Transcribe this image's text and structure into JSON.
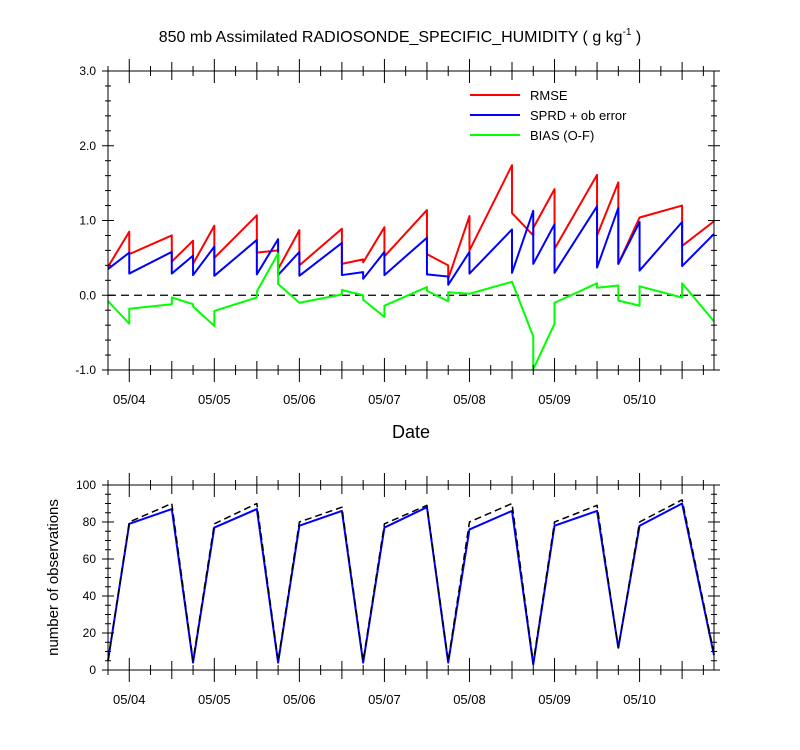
{
  "title": {
    "main": "850 mb Assimilated RADIOSONDE_SPECIFIC_HUMIDITY ( g kg",
    "sup": "-1",
    "close": " )"
  },
  "chart_data": [
    {
      "type": "line",
      "x_unit": "time (dates at 00 UTC)",
      "xlim": [
        "05/03 18:00",
        "05/10 21:00"
      ],
      "xticks": [
        "05/04",
        "05/05",
        "05/06",
        "05/07",
        "05/08",
        "05/09",
        "05/10"
      ],
      "xlabel": "Date",
      "ylim": [
        -1.0,
        3.0
      ],
      "yticks": [
        "-1.0",
        "0.0",
        "1.0",
        "2.0",
        "3.0"
      ],
      "zero_line": {
        "y": 0,
        "style": "dashed",
        "color": "#000000"
      },
      "legend_position": "top-right",
      "series": [
        {
          "name": "RMSE",
          "color": "#ff0000",
          "points": [
            [
              "05/03 18:00",
              0.38
            ],
            [
              "05/04 00:00",
              0.85
            ],
            [
              "05/04 00:00",
              0.55
            ],
            [
              "05/04 12:00",
              0.8
            ],
            [
              "05/04 12:00",
              0.45
            ],
            [
              "05/04 18:00",
              0.73
            ],
            [
              "05/04 18:00",
              0.42
            ],
            [
              "05/05 00:00",
              0.93
            ],
            [
              "05/05 00:00",
              0.5
            ],
            [
              "05/05 12:00",
              1.07
            ],
            [
              "05/05 12:00",
              0.57
            ],
            [
              "05/05 18:00",
              0.6
            ],
            [
              "05/05 18:00",
              0.35
            ],
            [
              "05/06 00:00",
              0.87
            ],
            [
              "05/06 00:00",
              0.4
            ],
            [
              "05/06 12:00",
              0.89
            ],
            [
              "05/06 12:00",
              0.42
            ],
            [
              "05/06 18:00",
              0.48
            ],
            [
              "05/06 18:00",
              0.44
            ],
            [
              "05/07 00:00",
              0.91
            ],
            [
              "05/07 00:00",
              0.52
            ],
            [
              "05/07 12:00",
              1.14
            ],
            [
              "05/07 12:00",
              0.55
            ],
            [
              "05/07 18:00",
              0.4
            ],
            [
              "05/07 18:00",
              0.22
            ],
            [
              "05/08 00:00",
              1.06
            ],
            [
              "05/08 00:00",
              0.6
            ],
            [
              "05/08 12:00",
              1.74
            ],
            [
              "05/08 12:00",
              1.1
            ],
            [
              "05/08 18:00",
              0.8
            ],
            [
              "05/08 18:00",
              0.9
            ],
            [
              "05/09 00:00",
              1.42
            ],
            [
              "05/09 00:00",
              0.62
            ],
            [
              "05/09 12:00",
              1.61
            ],
            [
              "05/09 12:00",
              0.8
            ],
            [
              "05/09 18:00",
              1.51
            ],
            [
              "05/09 18:00",
              0.42
            ],
            [
              "05/10 00:00",
              1.04
            ],
            [
              "05/10 12:00",
              1.2
            ],
            [
              "05/10 12:00",
              0.66
            ],
            [
              "05/10 21:00",
              0.99
            ]
          ]
        },
        {
          "name": "SPRD + ob error",
          "color": "#0000ff",
          "points": [
            [
              "05/03 18:00",
              0.35
            ],
            [
              "05/04 00:00",
              0.57
            ],
            [
              "05/04 00:00",
              0.29
            ],
            [
              "05/04 12:00",
              0.58
            ],
            [
              "05/04 12:00",
              0.29
            ],
            [
              "05/04 18:00",
              0.53
            ],
            [
              "05/04 18:00",
              0.27
            ],
            [
              "05/05 00:00",
              0.65
            ],
            [
              "05/05 00:00",
              0.26
            ],
            [
              "05/05 12:00",
              0.74
            ],
            [
              "05/05 12:00",
              0.28
            ],
            [
              "05/05 18:00",
              0.75
            ],
            [
              "05/05 18:00",
              0.27
            ],
            [
              "05/06 00:00",
              0.58
            ],
            [
              "05/06 00:00",
              0.26
            ],
            [
              "05/06 12:00",
              0.7
            ],
            [
              "05/06 12:00",
              0.27
            ],
            [
              "05/06 18:00",
              0.31
            ],
            [
              "05/06 18:00",
              0.22
            ],
            [
              "05/07 00:00",
              0.58
            ],
            [
              "05/07 00:00",
              0.27
            ],
            [
              "05/07 12:00",
              0.77
            ],
            [
              "05/07 12:00",
              0.28
            ],
            [
              "05/07 18:00",
              0.25
            ],
            [
              "05/07 18:00",
              0.14
            ],
            [
              "05/08 00:00",
              0.58
            ],
            [
              "05/08 00:00",
              0.29
            ],
            [
              "05/08 12:00",
              0.88
            ],
            [
              "05/08 12:00",
              0.3
            ],
            [
              "05/08 18:00",
              1.13
            ],
            [
              "05/08 18:00",
              0.42
            ],
            [
              "05/09 00:00",
              0.95
            ],
            [
              "05/09 00:00",
              0.3
            ],
            [
              "05/09 12:00",
              1.19
            ],
            [
              "05/09 12:00",
              0.37
            ],
            [
              "05/09 18:00",
              1.17
            ],
            [
              "05/09 18:00",
              0.42
            ],
            [
              "05/10 00:00",
              0.98
            ],
            [
              "05/10 00:00",
              0.33
            ],
            [
              "05/10 12:00",
              0.98
            ],
            [
              "05/10 12:00",
              0.39
            ],
            [
              "05/10 21:00",
              0.82
            ]
          ]
        },
        {
          "name": "BIAS (O-F)",
          "color": "#00ff00",
          "points": [
            [
              "05/03 18:00",
              -0.08
            ],
            [
              "05/04 00:00",
              -0.38
            ],
            [
              "05/04 00:00",
              -0.18
            ],
            [
              "05/04 12:00",
              -0.12
            ],
            [
              "05/04 12:00",
              -0.03
            ],
            [
              "05/04 18:00",
              -0.12
            ],
            [
              "05/04 18:00",
              -0.15
            ],
            [
              "05/05 00:00",
              -0.41
            ],
            [
              "05/05 00:00",
              -0.21
            ],
            [
              "05/05 12:00",
              -0.03
            ],
            [
              "05/05 12:00",
              0.05
            ],
            [
              "05/05 18:00",
              0.56
            ],
            [
              "05/05 18:00",
              0.15
            ],
            [
              "05/06 00:00",
              -0.1
            ],
            [
              "05/06 12:00",
              0.01
            ],
            [
              "05/06 12:00",
              0.07
            ],
            [
              "05/06 18:00",
              0.0
            ],
            [
              "05/06 18:00",
              -0.06
            ],
            [
              "05/07 00:00",
              -0.29
            ],
            [
              "05/07 00:00",
              -0.14
            ],
            [
              "05/07 12:00",
              0.11
            ],
            [
              "05/07 12:00",
              0.06
            ],
            [
              "05/07 18:00",
              -0.08
            ],
            [
              "05/07 18:00",
              0.04
            ],
            [
              "05/08 00:00",
              0.02
            ],
            [
              "05/08 12:00",
              0.18
            ],
            [
              "05/08 18:00",
              -0.55
            ],
            [
              "05/08 18:00",
              -0.99
            ],
            [
              "05/09 00:00",
              -0.38
            ],
            [
              "05/09 00:00",
              -0.1
            ],
            [
              "05/09 12:00",
              0.16
            ],
            [
              "05/09 12:00",
              0.1
            ],
            [
              "05/09 18:00",
              0.13
            ],
            [
              "05/09 18:00",
              -0.07
            ],
            [
              "05/10 00:00",
              -0.14
            ],
            [
              "05/10 00:00",
              0.12
            ],
            [
              "05/10 12:00",
              -0.03
            ],
            [
              "05/10 12:00",
              0.16
            ],
            [
              "05/10 21:00",
              -0.35
            ]
          ]
        }
      ]
    },
    {
      "type": "line",
      "x_unit": "time (dates at 00 UTC)",
      "xlim": [
        "05/03 18:00",
        "05/10 21:00"
      ],
      "xticks": [
        "05/04",
        "05/05",
        "05/06",
        "05/07",
        "05/08",
        "05/09",
        "05/10"
      ],
      "ylabel": "number of observations",
      "ylim": [
        0,
        100
      ],
      "yticks": [
        "0",
        "20",
        "40",
        "60",
        "80",
        "100"
      ],
      "series": [
        {
          "role": "assimilated",
          "color": "#0000ff",
          "style": "solid",
          "points": [
            [
              "05/03 18:00",
              5
            ],
            [
              "05/04 00:00",
              79
            ],
            [
              "05/04 12:00",
              87
            ],
            [
              "05/04 18:00",
              4
            ],
            [
              "05/05 00:00",
              77
            ],
            [
              "05/05 12:00",
              87
            ],
            [
              "05/05 18:00",
              4
            ],
            [
              "05/06 00:00",
              78
            ],
            [
              "05/06 12:00",
              86
            ],
            [
              "05/06 18:00",
              4
            ],
            [
              "05/07 00:00",
              77
            ],
            [
              "05/07 12:00",
              88
            ],
            [
              "05/07 18:00",
              4
            ],
            [
              "05/08 00:00",
              76
            ],
            [
              "05/08 12:00",
              86
            ],
            [
              "05/08 18:00",
              3
            ],
            [
              "05/09 00:00",
              78
            ],
            [
              "05/09 12:00",
              86
            ],
            [
              "05/09 18:00",
              12
            ],
            [
              "05/10 00:00",
              78
            ],
            [
              "05/10 12:00",
              90
            ],
            [
              "05/10 21:00",
              8
            ]
          ]
        },
        {
          "role": "possible",
          "color": "#000000",
          "style": "dashed",
          "points": [
            [
              "05/03 18:00",
              5
            ],
            [
              "05/04 00:00",
              80
            ],
            [
              "05/04 12:00",
              90
            ],
            [
              "05/04 18:00",
              5
            ],
            [
              "05/05 00:00",
              79
            ],
            [
              "05/05 12:00",
              90
            ],
            [
              "05/05 18:00",
              5
            ],
            [
              "05/06 00:00",
              80
            ],
            [
              "05/06 12:00",
              88
            ],
            [
              "05/06 18:00",
              5
            ],
            [
              "05/07 00:00",
              79
            ],
            [
              "05/07 12:00",
              89
            ],
            [
              "05/07 18:00",
              5
            ],
            [
              "05/08 00:00",
              80
            ],
            [
              "05/08 12:00",
              90
            ],
            [
              "05/08 18:00",
              4
            ],
            [
              "05/09 00:00",
              80
            ],
            [
              "05/09 12:00",
              89
            ],
            [
              "05/09 18:00",
              12
            ],
            [
              "05/10 00:00",
              80
            ],
            [
              "05/10 12:00",
              92
            ],
            [
              "05/10 21:00",
              9
            ]
          ]
        }
      ]
    }
  ]
}
